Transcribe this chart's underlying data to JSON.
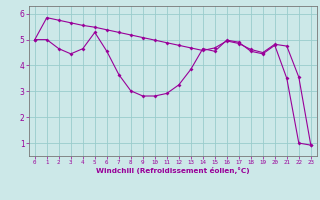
{
  "xlabel": "Windchill (Refroidissement éolien,°C)",
  "bg_color": "#cce8e8",
  "line_color": "#990099",
  "grid_color": "#99cccc",
  "xlim": [
    -0.5,
    23.5
  ],
  "ylim": [
    0.5,
    6.3
  ],
  "xticks": [
    0,
    1,
    2,
    3,
    4,
    5,
    6,
    7,
    8,
    9,
    10,
    11,
    12,
    13,
    14,
    15,
    16,
    17,
    18,
    19,
    20,
    21,
    22,
    23
  ],
  "yticks": [
    1,
    2,
    3,
    4,
    5,
    6
  ],
  "series1_x": [
    0,
    1,
    2,
    3,
    4,
    5,
    6,
    7,
    8,
    9,
    10,
    11,
    12,
    13,
    14,
    15,
    16,
    17,
    18,
    19,
    20,
    21,
    22,
    23
  ],
  "series1_y": [
    5.0,
    5.85,
    5.75,
    5.65,
    5.55,
    5.48,
    5.38,
    5.28,
    5.18,
    5.08,
    4.98,
    4.88,
    4.78,
    4.68,
    4.58,
    4.68,
    4.95,
    4.85,
    4.62,
    4.5,
    4.82,
    4.75,
    3.55,
    0.92
  ],
  "series2_x": [
    0,
    1,
    2,
    3,
    4,
    5,
    6,
    7,
    8,
    9,
    10,
    11,
    12,
    13,
    14,
    15,
    16,
    17,
    18,
    19,
    20,
    21,
    22,
    23
  ],
  "series2_y": [
    5.0,
    5.0,
    4.65,
    4.45,
    4.65,
    5.28,
    4.55,
    3.65,
    3.02,
    2.82,
    2.82,
    2.92,
    3.25,
    3.85,
    4.65,
    4.55,
    4.98,
    4.9,
    4.55,
    4.45,
    4.78,
    3.5,
    1.0,
    0.92
  ]
}
